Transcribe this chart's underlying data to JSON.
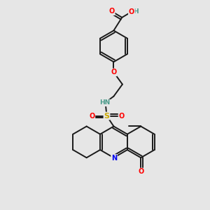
{
  "bg_color": "#e6e6e6",
  "bond_color": "#1a1a1a",
  "atom_colors": {
    "O": "#ff0000",
    "N": "#0000ee",
    "S": "#ccaa00",
    "H": "#4a9a8a",
    "C": "#1a1a1a"
  },
  "figsize": [
    3.0,
    3.0
  ],
  "dpi": 100
}
